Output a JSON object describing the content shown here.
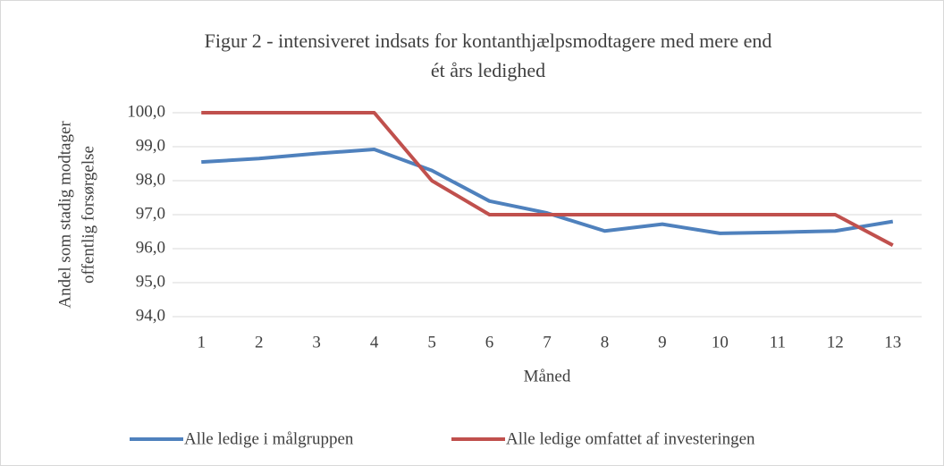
{
  "chart_data": {
    "type": "line",
    "title": [
      "Figur 2 - intensiveret indsats for kontanthjælpsmodtagere med mere end",
      "ét års ledighed"
    ],
    "x_label": "Måned",
    "y_label": [
      "Andel som stadig modtager",
      "offentlig forsørgelse"
    ],
    "categories": [
      "1",
      "2",
      "3",
      "4",
      "5",
      "6",
      "7",
      "8",
      "9",
      "10",
      "11",
      "12",
      "13"
    ],
    "series": [
      {
        "name": "Alle ledige i målgruppen",
        "color": "#4f81bd",
        "values": [
          98.55,
          98.65,
          98.8,
          98.92,
          98.3,
          97.4,
          97.05,
          96.52,
          96.72,
          96.45,
          96.48,
          96.52,
          96.8
        ]
      },
      {
        "name": "Alle ledige omfattet af investeringen",
        "color": "#c0504d",
        "values": [
          100,
          100,
          100,
          100,
          98.0,
          97.0,
          97.0,
          97.0,
          97.0,
          97.0,
          97.0,
          97.0,
          96.1
        ]
      }
    ],
    "ylim": [
      94,
      100
    ],
    "yticks": [
      {
        "value": 94,
        "label": "94,0"
      },
      {
        "value": 95,
        "label": "95,0"
      },
      {
        "value": 96,
        "label": "96,0"
      },
      {
        "value": 97,
        "label": "97,0"
      },
      {
        "value": 98,
        "label": "98,0"
      },
      {
        "value": 99,
        "label": "99,0"
      },
      {
        "value": 100,
        "label": "100,0"
      }
    ],
    "grid": true,
    "legend": "bottom"
  }
}
